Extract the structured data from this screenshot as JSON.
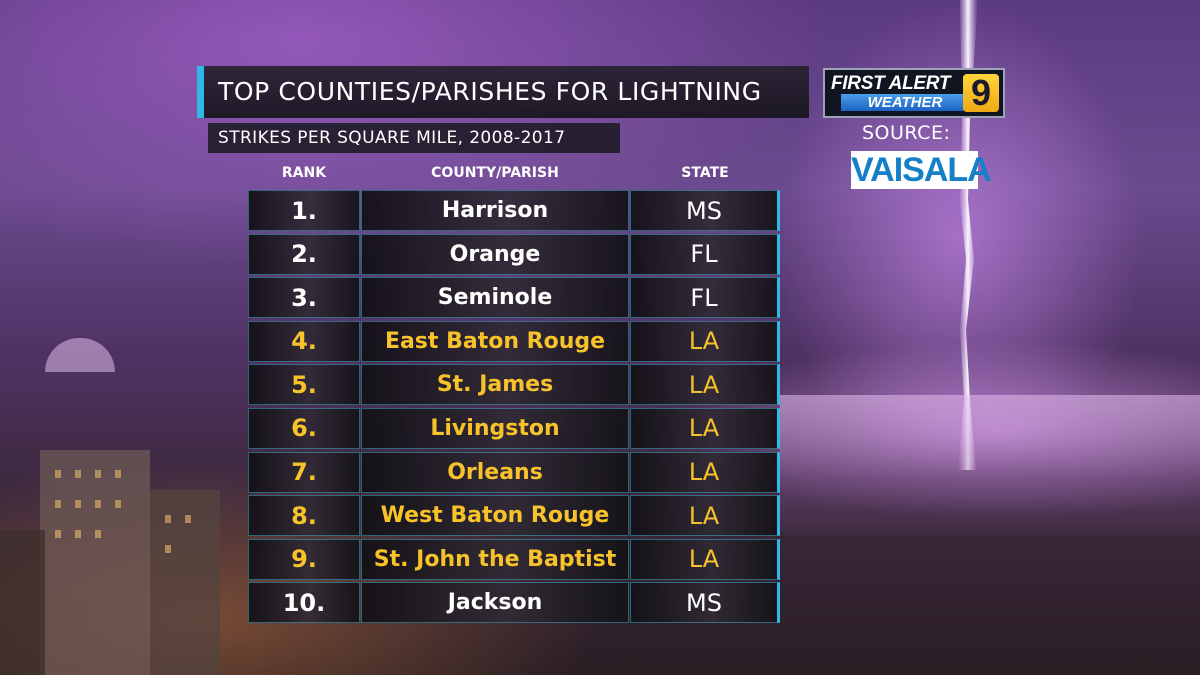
{
  "header": {
    "title": "TOP COUNTIES/PARISHES FOR LIGHTNING",
    "subtitle": "STRIKES PER SQUARE MILE, 2008-2017"
  },
  "logo": {
    "line1": "FIRST ALERT",
    "line2": "WEATHER",
    "channel": "9"
  },
  "source": {
    "label": "SOURCE:",
    "name": "VAISALA"
  },
  "table": {
    "columns": [
      "RANK",
      "COUNTY/PARISH",
      "STATE"
    ],
    "rows": [
      {
        "rank": "1.",
        "county": "Harrison",
        "state": "MS",
        "highlight": false
      },
      {
        "rank": "2.",
        "county": "Orange",
        "state": "FL",
        "highlight": false
      },
      {
        "rank": "3.",
        "county": "Seminole",
        "state": "FL",
        "highlight": false
      },
      {
        "rank": "4.",
        "county": "East Baton Rouge",
        "state": "LA",
        "highlight": true
      },
      {
        "rank": "5.",
        "county": "St. James",
        "state": "LA",
        "highlight": true
      },
      {
        "rank": "6.",
        "county": "Livingston",
        "state": "LA",
        "highlight": true
      },
      {
        "rank": "7.",
        "county": "Orleans",
        "state": "LA",
        "highlight": true
      },
      {
        "rank": "8.",
        "county": "West Baton Rouge",
        "state": "LA",
        "highlight": true
      },
      {
        "rank": "9.",
        "county": "St. John the Baptist",
        "state": "LA",
        "highlight": true
      },
      {
        "rank": "10.",
        "county": "Jackson",
        "state": "MS",
        "highlight": false
      }
    ]
  },
  "colors": {
    "accent": "#2fb8e8",
    "highlight_text": "#f7c22a",
    "normal_text": "#ffffff"
  }
}
